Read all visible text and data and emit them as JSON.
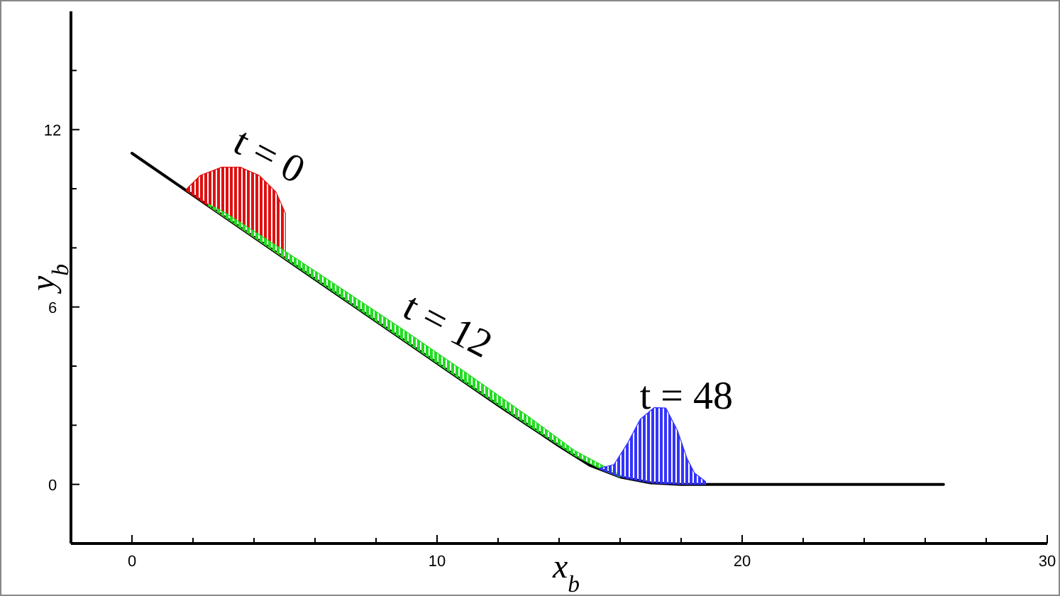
{
  "chart_data": {
    "type": "line",
    "xlabel": "x$_{b}$",
    "ylabel": "y$_{b}$",
    "xlim": [
      -2,
      30
    ],
    "ylim": [
      -2,
      16
    ],
    "xticks": [
      0,
      {
        "value": 2,
        "label": null
      },
      {
        "value": 4,
        "label": null
      },
      {
        "value": 6,
        "label": null
      },
      {
        "value": 8,
        "label": null
      },
      10,
      {
        "value": 12,
        "label": null
      },
      {
        "value": 14,
        "label": null
      },
      {
        "value": 16,
        "label": null
      },
      {
        "value": 18,
        "label": null
      },
      20,
      {
        "value": 22,
        "label": null
      },
      {
        "value": 24,
        "label": null
      },
      {
        "value": 26,
        "label": null
      },
      {
        "value": 28,
        "label": null
      },
      30
    ],
    "yticks": [
      0,
      {
        "value": 2,
        "label": null
      },
      {
        "value": 4,
        "label": null
      },
      6,
      {
        "value": 8,
        "label": null
      },
      {
        "value": 10,
        "label": null
      },
      12,
      {
        "value": 14,
        "label": null
      }
    ],
    "grid": false,
    "marker": "none",
    "line_style": "solid",
    "series": [
      {
        "color": "#000000",
        "x": [
          0,
          2,
          4,
          6,
          8,
          10,
          12,
          13,
          14,
          15,
          16,
          17,
          18,
          26.6
        ],
        "values": [
          11.2,
          9.78,
          8.36,
          6.94,
          5.52,
          4.1,
          2.68,
          1.99,
          1.3,
          0.65,
          0.25,
          0.05,
          0,
          0
        ]
      },
      {
        "type": "area",
        "color": "#e01010",
        "x": [
          1.77,
          2.24,
          2.94,
          3.55,
          4.17,
          4.72,
          5.03
        ],
        "values": [
          9.97,
          10.45,
          10.73,
          10.73,
          10.45,
          9.89,
          9.17
        ]
      },
      {
        "type": "area",
        "color": "#22dd22",
        "x": [
          2.5,
          3,
          5,
          7,
          9,
          11,
          13,
          14.5,
          15.5,
          16
        ],
        "values": [
          9.48,
          9.22,
          7.9,
          6.53,
          5.16,
          3.74,
          2.29,
          1.15,
          0.6,
          0.32
        ]
      },
      {
        "type": "area",
        "color": "#3333ff",
        "x": [
          15.34,
          15.8,
          16.25,
          16.66,
          17.12,
          17.5,
          17.88,
          18.2,
          18.44,
          18.8
        ],
        "values": [
          0.55,
          0.67,
          1.4,
          2.2,
          2.6,
          2.58,
          1.82,
          0.86,
          0.38,
          0.1
        ]
      }
    ],
    "annotations": [
      "t = 0",
      "t = 12",
      "t = 48"
    ]
  }
}
